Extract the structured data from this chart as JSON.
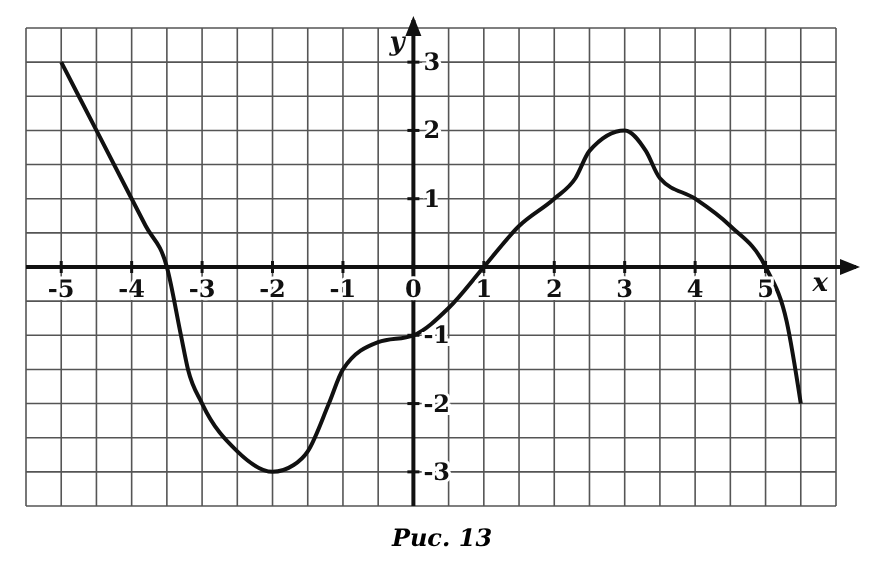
{
  "chart_data": {
    "type": "line",
    "xlabel": "x",
    "ylabel": "y",
    "annotations": [
      "Рис. 13"
    ],
    "x": [
      -5,
      -4.5,
      -4,
      -3.8,
      -3.5,
      -3.3,
      -3.2,
      -3,
      -2.5,
      -2,
      -1.7,
      -1.5,
      -1.2,
      -1,
      -0.5,
      0,
      0.5,
      1,
      1.5,
      2,
      2.3,
      2.5,
      3,
      3.3,
      3.5,
      4,
      4.5,
      5,
      5.3,
      5.5
    ],
    "series": [
      {
        "color": "#111111",
        "values": [
          3,
          2,
          1,
          0.6,
          0,
          -1,
          -1.5,
          -2,
          -2.7,
          -3,
          -2.9,
          -2.7,
          -2,
          -1.5,
          -1.1,
          -1,
          -0.6,
          0,
          0.6,
          1,
          1.3,
          1.7,
          2,
          1.7,
          1.3,
          1,
          0.6,
          0,
          -0.8,
          -2
        ]
      }
    ],
    "xlim": [
      -5.5,
      6
    ],
    "ylim": [
      -3.5,
      3.5
    ],
    "xticks": [
      -5,
      -4,
      -3,
      -2,
      -1,
      0,
      1,
      2,
      3,
      4,
      5
    ],
    "yticks": [
      -3,
      -2,
      -1,
      1,
      2,
      3
    ],
    "grid": true,
    "marker": "none",
    "line_style": "solid"
  }
}
